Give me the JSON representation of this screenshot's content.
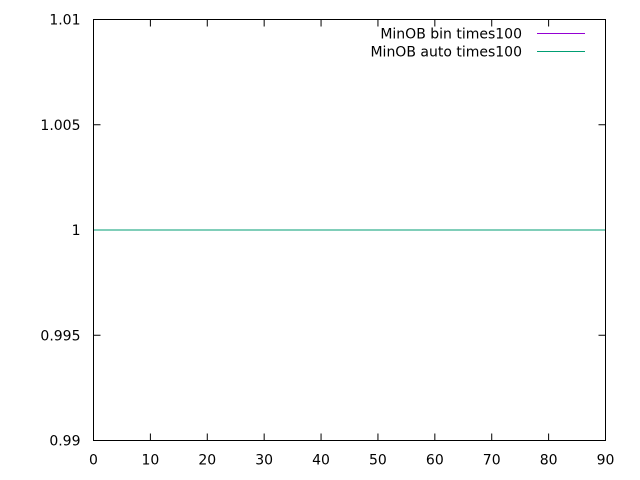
{
  "chart_data": {
    "type": "line",
    "title": "",
    "xlabel": "",
    "ylabel": "",
    "xlim": [
      0,
      90
    ],
    "ylim": [
      0.99,
      1.01
    ],
    "x_ticks": [
      0,
      10,
      20,
      30,
      40,
      50,
      60,
      70,
      80,
      90
    ],
    "x_tick_labels": [
      "0",
      "10",
      "20",
      "30",
      "40",
      "50",
      "60",
      "70",
      "80",
      "90"
    ],
    "y_ticks": [
      0.99,
      0.995,
      1,
      1.005,
      1.01
    ],
    "y_tick_labels": [
      "0.99",
      "0.995",
      "1",
      "1.005",
      "1.01"
    ],
    "grid": false,
    "legend_position": "top-right",
    "series": [
      {
        "name": "MinOB bin times100",
        "color": "#9400d3",
        "x": [
          0,
          90
        ],
        "y": [
          1,
          1
        ]
      },
      {
        "name": "MinOB auto times100",
        "color": "#009e73",
        "x": [
          0,
          90
        ],
        "y": [
          1,
          1
        ]
      }
    ]
  }
}
